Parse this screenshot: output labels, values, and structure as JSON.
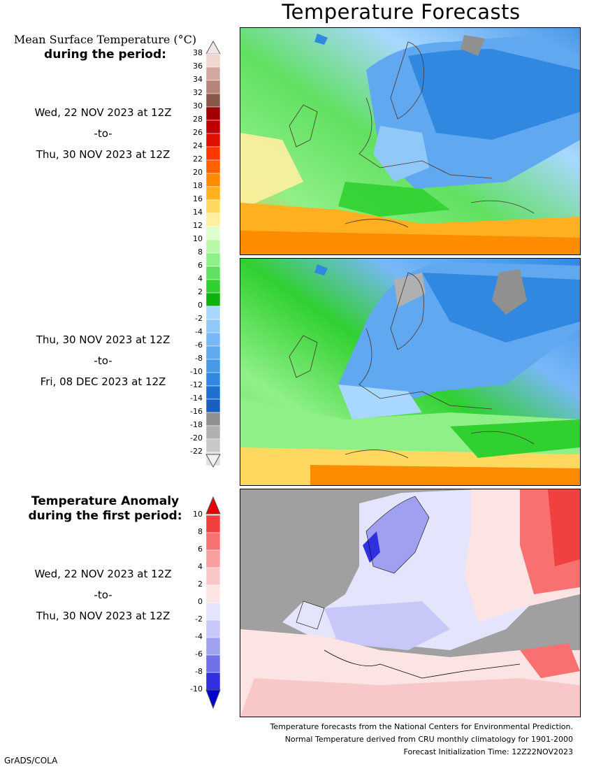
{
  "title": "Temperature Forecasts",
  "colorbar": {
    "title_line1": "Mean Surface Temperature (°C)",
    "title_line2": "during the period:",
    "ticks": [
      "38",
      "36",
      "34",
      "32",
      "30",
      "28",
      "26",
      "24",
      "22",
      "20",
      "18",
      "16",
      "14",
      "12",
      "10",
      "8",
      "6",
      "4",
      "2",
      "0",
      "-2",
      "-4",
      "-6",
      "-8",
      "-10",
      "-12",
      "-14",
      "-16",
      "-18",
      "-20",
      "-22"
    ],
    "colors": [
      "#f0d8d0",
      "#d4a8a0",
      "#b48478",
      "#8a5848",
      "#a00000",
      "#c00000",
      "#e01000",
      "#ff3800",
      "#ff6000",
      "#ff8c00",
      "#ffb020",
      "#ffd860",
      "#fff0a0",
      "#e0ffd0",
      "#b8f8a8",
      "#90f088",
      "#60e060",
      "#30d030",
      "#10b010",
      "#a8d8ff",
      "#90c8f8",
      "#78b8f8",
      "#60a8f0",
      "#4898e8",
      "#3088e0",
      "#2070d0",
      "#1860c0",
      "#909090",
      "#b0b0b0",
      "#c8c8c8",
      "#e0e0e0"
    ]
  },
  "periods": [
    {
      "from": "Wed, 22 NOV 2023 at 12Z",
      "to_word": "-to-",
      "to": "Thu, 30 NOV 2023 at 12Z"
    },
    {
      "from": "Thu, 30 NOV 2023 at 12Z",
      "to_word": "-to-",
      "to": "Fri, 08 DEC 2023 at 12Z"
    }
  ],
  "anomaly": {
    "title_line1": "Temperature Anomaly",
    "title_line2": "during the first period:",
    "from": "Wed, 22 NOV 2023 at 12Z",
    "to_word": "-to-",
    "to": "Thu, 30 NOV 2023 at 12Z",
    "ticks": [
      "10",
      "8",
      "6",
      "4",
      "2",
      "0",
      "-2",
      "-4",
      "-6",
      "-8",
      "-10"
    ],
    "colors": [
      "#f04040",
      "#f87070",
      "#f8a0a0",
      "#f8c8c8",
      "#fde4e4",
      "#e4e4fc",
      "#c8c8f8",
      "#a0a0f0",
      "#7070e8",
      "#3030e0"
    ]
  },
  "footer": {
    "line1": "Temperature forecasts from the National Centers for Environmental Prediction.",
    "line2": "Normal Temperature derived from CRU monthly climatology for 1901-2000",
    "line3": "Forecast Initialization Time: 12Z22NOV2023"
  },
  "credit": "GrADS/COLA"
}
